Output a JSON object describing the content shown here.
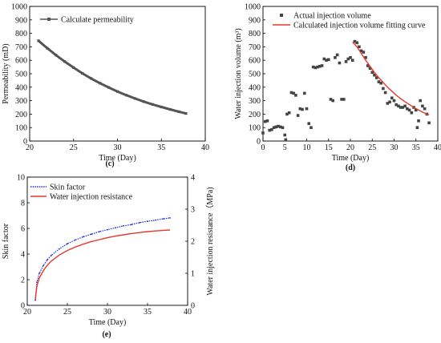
{
  "chart_data": [
    {
      "id": "c",
      "type": "line",
      "panel_label": "(c)",
      "xlabel": "Time (Day)",
      "ylabel": "Permeability (mD)",
      "xlim": [
        20,
        40
      ],
      "ylim": [
        0,
        1000
      ],
      "xticks": [
        "20",
        "25",
        "30",
        "35",
        "40"
      ],
      "yticks": [
        "0",
        "100",
        "200",
        "300",
        "400",
        "500",
        "600",
        "700",
        "800",
        "900",
        "1000"
      ],
      "series": [
        {
          "name": "Calculate permeability",
          "color": "#555555",
          "marker": "square",
          "x": [
            21,
            22,
            23,
            24,
            25,
            26,
            27,
            28,
            29,
            30,
            31,
            32,
            33,
            34,
            35,
            36,
            37,
            37.8
          ],
          "y": [
            745,
            690,
            638,
            590,
            545,
            503,
            465,
            430,
            398,
            368,
            341,
            316,
            293,
            272,
            253,
            235,
            218,
            205
          ]
        }
      ]
    },
    {
      "id": "d",
      "type": "scatter",
      "panel_label": "(d)",
      "xlabel": "Time (Day)",
      "ylabel": "Water injection volume (m³)",
      "xlim": [
        0,
        40
      ],
      "ylim": [
        0,
        1000
      ],
      "xticks": [
        "0",
        "5",
        "10",
        "15",
        "20",
        "25",
        "30",
        "35",
        "40"
      ],
      "yticks": [
        "0",
        "100",
        "200",
        "300",
        "400",
        "500",
        "600",
        "700",
        "800",
        "900",
        "1000"
      ],
      "series": [
        {
          "name": "Actual injection volume",
          "color": "#444444",
          "marker": "square",
          "x": [
            0,
            0.5,
            1,
            1.5,
            2,
            2.5,
            3,
            3.5,
            4,
            4.5,
            5,
            5.2,
            5.5,
            6,
            6.5,
            7,
            7.5,
            8,
            8.5,
            9,
            9.5,
            10,
            10.5,
            11,
            11.5,
            12,
            12.5,
            13,
            13.5,
            14,
            14.5,
            15,
            15.5,
            16,
            16.5,
            17,
            17.5,
            18,
            18.5,
            19,
            19.5,
            20,
            20.5,
            21,
            21.5,
            22,
            22.5,
            23,
            23.5,
            24,
            24.5,
            25,
            25.5,
            26,
            26.5,
            27,
            27.5,
            28,
            28.5,
            29,
            29.5,
            30,
            30.5,
            31,
            31.5,
            32,
            32.5,
            33,
            33.5,
            34,
            34.5,
            35,
            35.3,
            35.6,
            36,
            36.5,
            37,
            37.5,
            38
          ],
          "y": [
            60,
            145,
            150,
            80,
            85,
            100,
            105,
            110,
            105,
            100,
            45,
            10,
            200,
            210,
            360,
            355,
            340,
            190,
            240,
            235,
            355,
            240,
            130,
            100,
            550,
            545,
            550,
            555,
            560,
            610,
            600,
            605,
            310,
            300,
            620,
            640,
            580,
            310,
            310,
            590,
            610,
            620,
            600,
            740,
            730,
            700,
            670,
            660,
            620,
            560,
            540,
            510,
            490,
            470,
            440,
            430,
            390,
            360,
            280,
            290,
            320,
            300,
            270,
            260,
            250,
            250,
            260,
            240,
            230,
            210,
            250,
            230,
            100,
            150,
            300,
            260,
            240,
            200,
            135
          ]
        },
        {
          "name": "Calculated injection volume fitting curve",
          "color": "#e8382c",
          "marker": "none",
          "x": [
            20.5,
            21.5,
            22.5,
            23.5,
            24.5,
            25.5,
            26.5,
            27.5,
            28.5,
            29.5,
            30.5,
            31.5,
            32.5,
            33.5,
            34.5,
            35.5,
            36.5,
            37.5,
            38
          ],
          "y": [
            735,
            700,
            650,
            600,
            555,
            510,
            470,
            435,
            400,
            370,
            340,
            315,
            292,
            270,
            250,
            232,
            215,
            200,
            195
          ]
        }
      ]
    },
    {
      "id": "e",
      "type": "line",
      "panel_label": "(e)",
      "xlabel": "Time (Day)",
      "ylabel": "Skin factor",
      "y2label": "Water injection resistance（MPa)",
      "xlim": [
        20,
        40
      ],
      "ylim": [
        0,
        10
      ],
      "y2lim": [
        0,
        4
      ],
      "xticks": [
        "20",
        "25",
        "30",
        "35",
        "40"
      ],
      "yticks": [
        "0",
        "2",
        "4",
        "6",
        "8",
        "10"
      ],
      "y2ticks": [
        "0",
        "1",
        "2",
        "3",
        "4"
      ],
      "series": [
        {
          "name": "Skin factor",
          "axis": "left",
          "color": "#1f2fd6",
          "marker": "dot",
          "x": [
            21,
            21.2,
            21.5,
            22,
            22.5,
            23,
            24,
            25,
            26,
            27,
            28,
            29,
            30,
            31,
            32,
            33,
            34,
            35,
            36,
            37,
            37.8
          ],
          "y": [
            0.4,
            1.8,
            2.5,
            3.1,
            3.55,
            3.9,
            4.4,
            4.8,
            5.1,
            5.35,
            5.55,
            5.75,
            5.9,
            6.05,
            6.2,
            6.3,
            6.45,
            6.55,
            6.65,
            6.75,
            6.82
          ]
        },
        {
          "name": "Water injection resistance",
          "axis": "right",
          "color": "#e8382c",
          "marker": "none",
          "x": [
            21,
            21.2,
            21.5,
            22,
            22.5,
            23,
            24,
            25,
            26,
            27,
            28,
            29,
            30,
            31,
            32,
            33,
            34,
            35,
            36,
            37,
            37.8
          ],
          "y": [
            0.17,
            0.6,
            0.85,
            1.08,
            1.25,
            1.38,
            1.57,
            1.71,
            1.82,
            1.91,
            1.99,
            2.05,
            2.11,
            2.16,
            2.2,
            2.24,
            2.27,
            2.3,
            2.32,
            2.34,
            2.35
          ]
        }
      ]
    }
  ]
}
